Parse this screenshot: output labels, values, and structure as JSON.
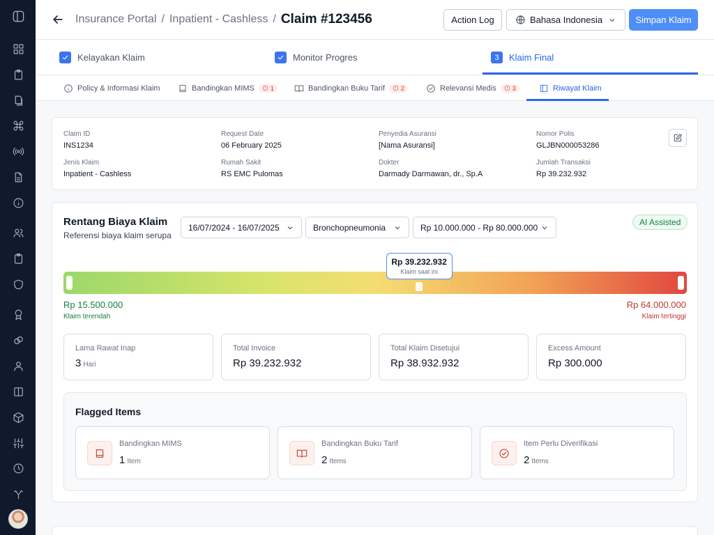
{
  "sidebar": {
    "items": [
      {
        "icon": "sidebar-toggle-icon"
      },
      {
        "icon": "grid-icon"
      },
      {
        "icon": "clipboard-icon"
      },
      {
        "icon": "stacked-files-icon"
      },
      {
        "icon": "command-icon"
      },
      {
        "icon": "broadcast-icon"
      },
      {
        "icon": "document-icon"
      },
      {
        "icon": "info-circle-icon"
      },
      {
        "icon": "users-icon"
      },
      {
        "icon": "clipboard-list-icon"
      },
      {
        "icon": "shield-icon"
      },
      {
        "icon": "award-icon"
      },
      {
        "icon": "link-icon"
      },
      {
        "icon": "user-icon"
      },
      {
        "icon": "book-open-icon"
      },
      {
        "icon": "box-icon"
      },
      {
        "icon": "sliders-icon"
      },
      {
        "icon": "clock-icon"
      },
      {
        "icon": "git-branch-icon"
      }
    ]
  },
  "header": {
    "breadcrumb": [
      "Insurance Portal",
      "Inpatient - Cashless"
    ],
    "separator": "/",
    "title": "Claim #123456",
    "action_log_label": "Action Log",
    "language_selected": "Bahasa Indonesia",
    "save_label": "Simpan Klaim"
  },
  "steps": [
    {
      "label": "Kelayakan Klaim",
      "state": "done"
    },
    {
      "label": "Monitor Progres",
      "state": "done"
    },
    {
      "number": "3",
      "label": "Klaim Final",
      "state": "active"
    }
  ],
  "tabs": [
    {
      "label": "Policy & Informasi Klaim",
      "icon": "info-circle-icon"
    },
    {
      "label": "Bandingkan MIMS",
      "icon": "book-icon",
      "badge": "1"
    },
    {
      "label": "Bandingkan Buku Tarif",
      "icon": "book-open-icon",
      "badge": "2"
    },
    {
      "label": "Relevansi Medis",
      "icon": "check-circle-icon",
      "badge": "3"
    },
    {
      "label": "Riwayat Klaim",
      "icon": "panel-icon",
      "active": true
    }
  ],
  "claim_info": {
    "claim_id_label": "Claim ID",
    "claim_id": "INS1234",
    "request_date_label": "Request Date",
    "request_date": "06 February 2025",
    "provider_label": "Penyedia Asuransi",
    "provider": "[Nama Asuransi]",
    "policy_label": "Nomor Polis",
    "policy": "GLJBN000053286",
    "claim_type_label": "Jenis Klaim",
    "claim_type": "Inpatient - Cashless",
    "hospital_label": "Rumah Sakit",
    "hospital": "RS EMC Pulomas",
    "doctor_label": "Dokter",
    "doctor": "Darmady Darmawan, dr., Sp.A",
    "total_tx_label": "Jumlah Transaksi",
    "total_tx": "Rp 39.232.932"
  },
  "range": {
    "title": "Rentang Biaya Klaim",
    "subtitle": "Referensi biaya klaim serupa",
    "date_range": "16/07/2024 - 16/07/2025",
    "diagnosis": "Bronchopneumonia",
    "amount_range": "Rp 10.000.000 - Rp 80.000.000",
    "ai_badge": "AI Assisted",
    "current_value": "Rp 39.232.932",
    "current_label": "Klaim saat ini",
    "current_position_fraction": 0.57,
    "low_value": "Rp 15.500.000",
    "low_label": "Klaim terendah",
    "high_value": "Rp 64.000.000",
    "high_label": "Klaim tertinggi"
  },
  "stats": [
    {
      "label": "Lama Rawat Inap",
      "value": "3",
      "unit": "Hari"
    },
    {
      "label": "Total Invoice",
      "value": "Rp 39.232.932"
    },
    {
      "label": "Total Klaim Disetujui",
      "value": "Rp 38.932.932"
    },
    {
      "label": "Excess Amount",
      "value": "Rp 300.000"
    }
  ],
  "flagged": {
    "title": "Flagged Items",
    "items": [
      {
        "label": "Bandingkan MIMS",
        "value": "1",
        "unit": "Item",
        "icon": "book-icon"
      },
      {
        "label": "Bandingkan Buku Tarif",
        "value": "2",
        "unit": "Items",
        "icon": "book-open-icon"
      },
      {
        "label": "Item Perlu Diverifikasi",
        "value": "2",
        "unit": "Items",
        "icon": "check-circle-icon"
      }
    ]
  },
  "colors": {
    "sidebar_bg": "#101a2c",
    "accent": "#2f66e8",
    "primary_button": "#4f8ef7",
    "low_green": "#16803c",
    "high_red": "#c0392b",
    "ai_green": "#15803d",
    "badge_red": "#d92d20"
  }
}
